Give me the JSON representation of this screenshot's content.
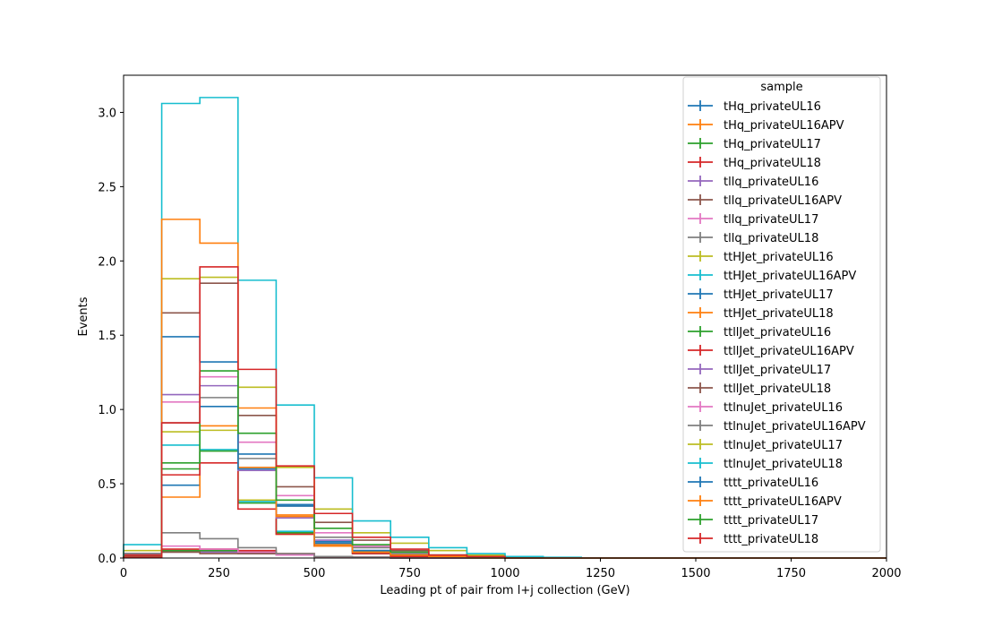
{
  "chart_data": {
    "type": "histogram-step",
    "xlabel": "Leading pt of pair from l+j collection (GeV)",
    "ylabel": "Events",
    "xlim": [
      0,
      2000
    ],
    "ylim": [
      0,
      3.25
    ],
    "xticks": [
      0,
      250,
      500,
      750,
      1000,
      1250,
      1500,
      1750,
      2000
    ],
    "xtick_labels": [
      "0",
      "250",
      "500",
      "750",
      "1000",
      "1250",
      "1500",
      "1750",
      "2000"
    ],
    "yticks": [
      0.0,
      0.5,
      1.0,
      1.5,
      2.0,
      2.5,
      3.0
    ],
    "ytick_labels": [
      "0.0",
      "0.5",
      "1.0",
      "1.5",
      "2.0",
      "2.5",
      "3.0"
    ],
    "grid": false,
    "legend": {
      "title": "sample",
      "placement": "top-right"
    },
    "bin_edges": [
      0,
      100,
      200,
      300,
      400,
      500,
      600,
      700,
      800,
      900,
      1000,
      1100,
      1200,
      1300,
      1400,
      1500,
      1600,
      1700,
      1800,
      1900,
      2000
    ],
    "series": [
      {
        "name": "tHq_privateUL16",
        "color": "#1f77b4",
        "values": [
          0.01,
          0.04,
          0.04,
          0.03,
          0.02,
          0.01,
          0.005,
          0,
          0,
          0,
          0,
          0,
          0,
          0,
          0,
          0,
          0,
          0,
          0,
          0
        ]
      },
      {
        "name": "tHq_privateUL16APV",
        "color": "#ff7f0e",
        "values": [
          0.01,
          0.04,
          0.04,
          0.03,
          0.02,
          0.01,
          0.005,
          0,
          0,
          0,
          0,
          0,
          0,
          0,
          0,
          0,
          0,
          0,
          0,
          0
        ]
      },
      {
        "name": "tHq_privateUL17",
        "color": "#2ca02c",
        "values": [
          0.02,
          0.05,
          0.05,
          0.04,
          0.02,
          0.01,
          0.005,
          0,
          0,
          0,
          0,
          0,
          0,
          0,
          0,
          0,
          0,
          0,
          0,
          0
        ]
      },
      {
        "name": "tHq_privateUL18",
        "color": "#d62728",
        "values": [
          0.02,
          0.06,
          0.06,
          0.05,
          0.03,
          0.01,
          0.005,
          0,
          0,
          0,
          0,
          0,
          0,
          0,
          0,
          0,
          0,
          0,
          0,
          0
        ]
      },
      {
        "name": "tllq_privateUL16",
        "color": "#9467bd",
        "values": [
          0.01,
          0.04,
          0.04,
          0.03,
          0.02,
          0.01,
          0.005,
          0,
          0,
          0,
          0,
          0,
          0,
          0,
          0,
          0,
          0,
          0,
          0,
          0
        ]
      },
      {
        "name": "tllq_privateUL16APV",
        "color": "#8c564b",
        "values": [
          0.01,
          0.04,
          0.03,
          0.03,
          0.02,
          0.01,
          0.005,
          0,
          0,
          0,
          0,
          0,
          0,
          0,
          0,
          0,
          0,
          0,
          0,
          0
        ]
      },
      {
        "name": "tllq_privateUL17",
        "color": "#e377c2",
        "values": [
          0.02,
          0.08,
          0.06,
          0.04,
          0.02,
          0.01,
          0.005,
          0,
          0,
          0,
          0,
          0,
          0,
          0,
          0,
          0,
          0,
          0,
          0,
          0
        ]
      },
      {
        "name": "tllq_privateUL18",
        "color": "#7f7f7f",
        "values": [
          0.03,
          0.17,
          0.13,
          0.07,
          0.03,
          0.01,
          0.005,
          0,
          0,
          0,
          0,
          0,
          0,
          0,
          0,
          0,
          0,
          0,
          0,
          0
        ]
      },
      {
        "name": "ttHJet_privateUL16",
        "color": "#bcbd22",
        "values": [
          0.02,
          0.85,
          0.86,
          0.39,
          0.16,
          0.08,
          0.03,
          0.01,
          0.005,
          0,
          0,
          0,
          0,
          0,
          0,
          0,
          0,
          0,
          0,
          0
        ]
      },
      {
        "name": "ttHJet_privateUL16APV",
        "color": "#17becf",
        "values": [
          0.02,
          0.76,
          0.73,
          0.38,
          0.18,
          0.08,
          0.03,
          0.01,
          0.005,
          0,
          0,
          0,
          0,
          0,
          0,
          0,
          0,
          0,
          0,
          0
        ]
      },
      {
        "name": "ttHJet_privateUL17",
        "color": "#1f77b4",
        "values": [
          0.02,
          0.49,
          1.02,
          0.7,
          0.36,
          0.11,
          0.05,
          0.02,
          0.01,
          0,
          0,
          0,
          0,
          0,
          0,
          0,
          0,
          0,
          0,
          0
        ]
      },
      {
        "name": "ttHJet_privateUL18",
        "color": "#ff7f0e",
        "values": [
          0.02,
          0.41,
          0.89,
          0.61,
          0.29,
          0.09,
          0.04,
          0.02,
          0.01,
          0,
          0,
          0,
          0,
          0,
          0,
          0,
          0,
          0,
          0,
          0
        ]
      },
      {
        "name": "ttllJet_privateUL16",
        "color": "#2ca02c",
        "values": [
          0.02,
          0.6,
          0.72,
          0.37,
          0.17,
          0.08,
          0.04,
          0.02,
          0.01,
          0,
          0,
          0,
          0,
          0,
          0,
          0,
          0,
          0,
          0,
          0
        ]
      },
      {
        "name": "ttllJet_privateUL16APV",
        "color": "#d62728",
        "values": [
          0.02,
          0.56,
          0.64,
          0.33,
          0.16,
          0.08,
          0.03,
          0.01,
          0.005,
          0,
          0,
          0,
          0,
          0,
          0,
          0,
          0,
          0,
          0,
          0
        ]
      },
      {
        "name": "ttllJet_privateUL17",
        "color": "#9467bd",
        "values": [
          0.03,
          1.1,
          1.16,
          0.59,
          0.27,
          0.12,
          0.05,
          0.02,
          0.01,
          0,
          0,
          0,
          0,
          0,
          0,
          0,
          0,
          0,
          0,
          0
        ]
      },
      {
        "name": "ttllJet_privateUL18",
        "color": "#8c564b",
        "values": [
          0.03,
          1.65,
          1.85,
          0.96,
          0.48,
          0.24,
          0.12,
          0.05,
          0.02,
          0.01,
          0,
          0,
          0,
          0,
          0,
          0,
          0,
          0,
          0,
          0
        ]
      },
      {
        "name": "ttlnuJet_privateUL16",
        "color": "#e377c2",
        "values": [
          0.03,
          1.05,
          1.22,
          0.78,
          0.42,
          0.17,
          0.08,
          0.03,
          0.01,
          0,
          0,
          0,
          0,
          0,
          0,
          0,
          0,
          0,
          0,
          0
        ]
      },
      {
        "name": "ttlnuJet_privateUL16APV",
        "color": "#7f7f7f",
        "values": [
          0.03,
          0.91,
          1.08,
          0.67,
          0.35,
          0.14,
          0.07,
          0.03,
          0.01,
          0,
          0,
          0,
          0,
          0,
          0,
          0,
          0,
          0,
          0,
          0
        ]
      },
      {
        "name": "ttlnuJet_privateUL17",
        "color": "#bcbd22",
        "values": [
          0.05,
          1.88,
          1.89,
          1.15,
          0.61,
          0.33,
          0.17,
          0.1,
          0.05,
          0.02,
          0.01,
          0,
          0,
          0,
          0,
          0,
          0,
          0,
          0,
          0
        ]
      },
      {
        "name": "ttlnuJet_privateUL18",
        "color": "#17becf",
        "values": [
          0.09,
          3.06,
          3.1,
          1.87,
          1.03,
          0.54,
          0.25,
          0.14,
          0.07,
          0.03,
          0.01,
          0.005,
          0,
          0,
          0,
          0,
          0,
          0,
          0,
          0
        ]
      },
      {
        "name": "tttt_privateUL16",
        "color": "#1f77b4",
        "values": [
          0.005,
          1.49,
          1.32,
          0.6,
          0.35,
          0.1,
          0.05,
          0.02,
          0.01,
          0,
          0,
          0,
          0,
          0,
          0,
          0,
          0,
          0,
          0,
          0
        ]
      },
      {
        "name": "tttt_privateUL16APV",
        "color": "#ff7f0e",
        "values": [
          0.005,
          2.28,
          2.12,
          1.01,
          0.28,
          0.08,
          0.04,
          0.02,
          0.01,
          0,
          0,
          0,
          0,
          0,
          0,
          0,
          0,
          0,
          0,
          0
        ]
      },
      {
        "name": "tttt_privateUL17",
        "color": "#2ca02c",
        "values": [
          0.005,
          0.64,
          1.26,
          0.84,
          0.39,
          0.2,
          0.09,
          0.04,
          0.02,
          0.01,
          0,
          0,
          0,
          0,
          0,
          0,
          0,
          0,
          0,
          0
        ]
      },
      {
        "name": "tttt_privateUL18",
        "color": "#d62728",
        "values": [
          0.005,
          0.91,
          1.96,
          1.27,
          0.62,
          0.3,
          0.14,
          0.06,
          0.02,
          0.01,
          0,
          0,
          0,
          0,
          0,
          0,
          0,
          0,
          0,
          0
        ]
      }
    ]
  }
}
